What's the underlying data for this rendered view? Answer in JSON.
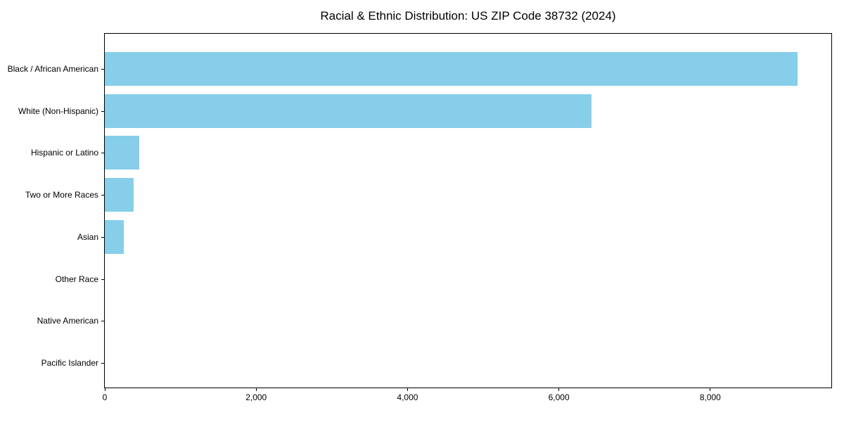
{
  "figure": {
    "background_color": "#ffffff",
    "frame_color": "#000000",
    "text_color": "#000000"
  },
  "chart_data": {
    "type": "bar",
    "orientation": "horizontal",
    "title": "Racial & Ethnic Distribution: US ZIP Code 38732 (2024)",
    "xlabel": "",
    "ylabel": "",
    "categories": [
      "Black / African American",
      "White (Non-Hispanic)",
      "Hispanic or Latino",
      "Two or More Races",
      "Asian",
      "Other Race",
      "Native American",
      "Pacific Islander"
    ],
    "values": [
      9150,
      6430,
      455,
      385,
      255,
      0,
      0,
      0
    ],
    "bar_color": "#87CEEB",
    "xlim": [
      0,
      9600
    ],
    "x_ticks": {
      "values": [
        0,
        2000,
        4000,
        6000,
        8000
      ],
      "labels": [
        "0",
        "2,000",
        "4,000",
        "6,000",
        "8,000"
      ]
    },
    "grid": false,
    "legend": null
  }
}
